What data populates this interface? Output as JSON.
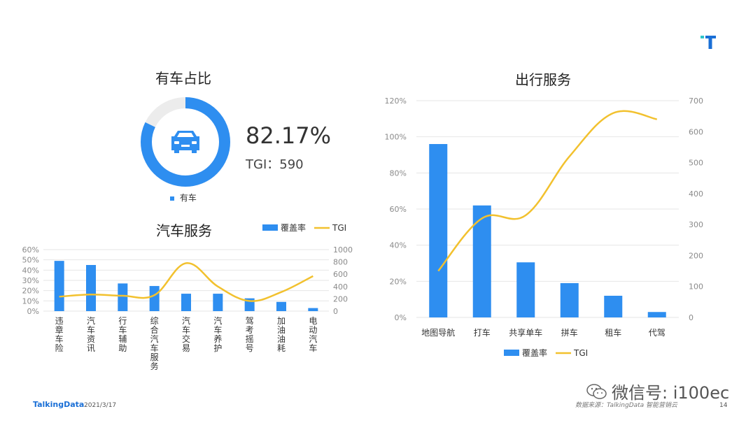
{
  "logo": {
    "text": "T"
  },
  "donut": {
    "title": "有车占比",
    "pct_text": "82.17%",
    "tgi_text": "TGI：590",
    "legend_label": "有车",
    "value": 0.8217,
    "colors": {
      "fill": "#2e8ef0",
      "track": "#ececec"
    },
    "icon": "car-icon"
  },
  "chart_data": [
    {
      "type": "bar+line",
      "title": "汽车服务",
      "categories": [
        "违章车险",
        "汽车资讯",
        "行车辅助",
        "综合汽车服务",
        "汽车交易",
        "汽车养护",
        "驾考摇号",
        "加油油耗",
        "电动汽车"
      ],
      "series": [
        {
          "name": "覆盖率",
          "type": "bar",
          "axis": "left",
          "color": "#2e8ef0",
          "values": [
            0.49,
            0.45,
            0.27,
            0.245,
            0.17,
            0.17,
            0.125,
            0.09,
            0.03
          ]
        },
        {
          "name": "TGI",
          "type": "line",
          "axis": "right",
          "color": "#f2c12e",
          "values": [
            235,
            270,
            250,
            260,
            780,
            400,
            165,
            310,
            570
          ]
        }
      ],
      "left_axis": {
        "ticks": [
          "0%",
          "10%",
          "20%",
          "30%",
          "40%",
          "50%",
          "60%"
        ],
        "min": 0,
        "max": 0.6
      },
      "right_axis": {
        "ticks": [
          "0",
          "200",
          "400",
          "600",
          "800",
          "1000"
        ],
        "min": 0,
        "max": 1000
      },
      "legend_position": "top-right",
      "grid": true
    },
    {
      "type": "bar+line",
      "title": "出行服务",
      "categories": [
        "地图导航",
        "打车",
        "共享单车",
        "拼车",
        "租车",
        "代驾"
      ],
      "series": [
        {
          "name": "覆盖率",
          "type": "bar",
          "axis": "left",
          "color": "#2e8ef0",
          "values": [
            0.96,
            0.62,
            0.305,
            0.19,
            0.12,
            0.03
          ]
        },
        {
          "name": "TGI",
          "type": "line",
          "axis": "right",
          "color": "#f2c12e",
          "values": [
            150,
            320,
            330,
            520,
            660,
            640
          ]
        }
      ],
      "left_axis": {
        "ticks": [
          "0%",
          "20%",
          "40%",
          "60%",
          "80%",
          "100%",
          "120%"
        ],
        "min": 0,
        "max": 1.2
      },
      "right_axis": {
        "ticks": [
          "0",
          "100",
          "200",
          "300",
          "400",
          "500",
          "600",
          "700"
        ],
        "min": 0,
        "max": 700
      },
      "legend_position": "bottom",
      "grid": true
    }
  ],
  "footer": {
    "brand": "TalkingData",
    "date": "2021/3/17",
    "source": "数据来源：TalkingData 智能营销云",
    "page": "14",
    "watermark": "微信号: i100ec"
  }
}
